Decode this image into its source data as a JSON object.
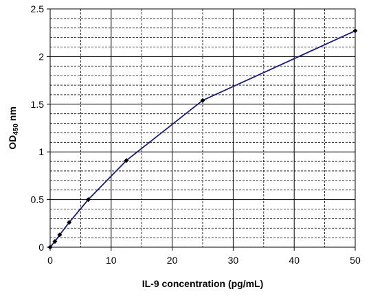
{
  "chart_data": {
    "type": "line",
    "title": "",
    "xlabel": "IL-9 concentration (pg/mL)",
    "ylabel_main": "OD",
    "ylabel_sub": "450",
    "ylabel_unit": " nm",
    "xlim": [
      0,
      50
    ],
    "ylim": [
      0,
      2.5
    ],
    "xticks": [
      "0",
      "10",
      "20",
      "30",
      "40",
      "50"
    ],
    "yticks": [
      "0",
      "0.5",
      "1",
      "1.5",
      "2",
      "2.5"
    ],
    "grid": true,
    "series": [
      {
        "x": [
          0,
          0.78,
          1.56,
          3.12,
          6.25,
          12.5,
          25,
          50
        ],
        "y": [
          0.0,
          0.06,
          0.13,
          0.26,
          0.5,
          0.91,
          1.54,
          2.27
        ]
      }
    ],
    "colors": {
      "line": "#1a1a7a",
      "marker": "#000000",
      "grid": "#000000"
    }
  }
}
